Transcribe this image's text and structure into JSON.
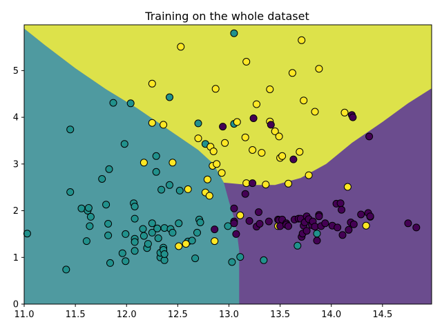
{
  "chart_data": {
    "type": "scatter",
    "title": "Training on the whole dataset",
    "xlabel": "",
    "ylabel": "",
    "xlim": [
      11.0,
      14.98
    ],
    "ylim": [
      0.0,
      5.98
    ],
    "grid": false,
    "legend": "none",
    "x_ticks": [
      "11.0",
      "11.5",
      "12.0",
      "12.5",
      "13.0",
      "13.5",
      "14.0",
      "14.5"
    ],
    "x_tick_values": [
      11.0,
      11.5,
      12.0,
      12.5,
      13.0,
      13.5,
      14.0,
      14.5
    ],
    "y_ticks": [
      "0",
      "1",
      "2",
      "3",
      "4",
      "5"
    ],
    "y_tick_values": [
      0,
      1,
      2,
      3,
      4,
      5
    ],
    "colors": {
      "class_0": "#440154",
      "class_1": "#21918c",
      "class_2": "#fde725",
      "region_0": "#6b4c8e",
      "region_1": "#4f9aa0",
      "region_2": "#dde24a"
    },
    "decision_regions": {
      "region_1_boundary": [
        [
          11.0,
          5.9
        ],
        [
          11.2,
          5.55
        ],
        [
          11.5,
          5.05
        ],
        [
          11.8,
          4.6
        ],
        [
          12.1,
          4.2
        ],
        [
          12.4,
          3.75
        ],
        [
          12.7,
          3.3
        ],
        [
          12.85,
          3.0
        ],
        [
          12.95,
          2.6
        ],
        [
          13.0,
          2.2
        ],
        [
          13.05,
          1.85
        ],
        [
          13.08,
          1.5
        ],
        [
          13.1,
          1.15
        ],
        [
          13.1,
          0.0
        ]
      ],
      "region_2_boundary": [
        [
          12.95,
          2.6
        ],
        [
          13.2,
          2.55
        ],
        [
          13.45,
          2.55
        ],
        [
          13.7,
          2.7
        ],
        [
          13.95,
          3.0
        ],
        [
          14.2,
          3.45
        ],
        [
          14.5,
          3.9
        ],
        [
          14.75,
          4.3
        ],
        [
          14.98,
          4.62
        ]
      ]
    },
    "series": [
      {
        "class": 1,
        "points": [
          [
            11.03,
            1.51
          ],
          [
            11.41,
            0.74
          ],
          [
            11.45,
            3.74
          ],
          [
            11.45,
            2.4
          ],
          [
            11.56,
            2.05
          ],
          [
            11.61,
            1.35
          ],
          [
            11.62,
            2.0
          ],
          [
            11.63,
            2.06
          ],
          [
            11.64,
            1.67
          ],
          [
            11.65,
            1.87
          ],
          [
            11.76,
            2.68
          ],
          [
            11.8,
            2.13
          ],
          [
            11.82,
            1.47
          ],
          [
            11.82,
            1.72
          ],
          [
            11.83,
            2.89
          ],
          [
            11.84,
            0.88
          ],
          [
            11.87,
            4.31
          ],
          [
            11.96,
            1.09
          ],
          [
            11.98,
            3.43
          ],
          [
            11.99,
            0.92
          ],
          [
            11.99,
            1.5
          ],
          [
            12.04,
            4.3
          ],
          [
            12.07,
            2.16
          ],
          [
            12.08,
            2.09
          ],
          [
            12.08,
            1.83
          ],
          [
            12.08,
            1.4
          ],
          [
            12.08,
            1.33
          ],
          [
            12.08,
            1.14
          ],
          [
            12.16,
            1.61
          ],
          [
            12.17,
            1.46
          ],
          [
            12.2,
            1.2
          ],
          [
            12.21,
            1.29
          ],
          [
            12.25,
            1.73
          ],
          [
            12.25,
            1.53
          ],
          [
            12.29,
            2.83
          ],
          [
            12.29,
            3.17
          ],
          [
            12.3,
            1.62
          ],
          [
            12.31,
            1.41
          ],
          [
            12.33,
            1.0
          ],
          [
            12.33,
            1.1
          ],
          [
            12.34,
            2.45
          ],
          [
            12.36,
            1.21
          ],
          [
            12.36,
            1.16
          ],
          [
            12.37,
            0.94
          ],
          [
            12.37,
            1.07
          ],
          [
            12.37,
            1.63
          ],
          [
            12.42,
            4.43
          ],
          [
            12.42,
            2.55
          ],
          [
            12.43,
            1.61
          ],
          [
            12.45,
            1.53
          ],
          [
            12.51,
            1.73
          ],
          [
            12.52,
            2.43
          ],
          [
            12.6,
            1.34
          ],
          [
            12.64,
            1.36
          ],
          [
            12.67,
            0.98
          ],
          [
            12.69,
            1.53
          ],
          [
            12.7,
            3.87
          ],
          [
            12.71,
            1.81
          ],
          [
            12.72,
            1.75
          ],
          [
            12.77,
            3.43
          ],
          [
            12.99,
            1.67
          ],
          [
            13.03,
            0.9
          ],
          [
            13.05,
            3.86
          ],
          [
            13.05,
            5.8
          ],
          [
            13.11,
            1.01
          ],
          [
            13.34,
            0.94
          ],
          [
            13.67,
            1.25
          ],
          [
            13.86,
            1.51
          ]
        ]
      },
      {
        "class": 2,
        "points": [
          [
            12.17,
            3.03
          ],
          [
            12.25,
            4.72
          ],
          [
            12.25,
            3.88
          ],
          [
            12.36,
            3.84
          ],
          [
            12.45,
            3.03
          ],
          [
            12.51,
            1.24
          ],
          [
            12.53,
            5.51
          ],
          [
            12.58,
            1.29
          ],
          [
            12.6,
            2.46
          ],
          [
            12.7,
            3.55
          ],
          [
            12.77,
            2.39
          ],
          [
            12.79,
            2.67
          ],
          [
            12.81,
            2.32
          ],
          [
            12.82,
            3.37
          ],
          [
            12.84,
            2.96
          ],
          [
            12.85,
            3.27
          ],
          [
            12.86,
            1.35
          ],
          [
            12.87,
            4.61
          ],
          [
            12.88,
            3.0
          ],
          [
            12.93,
            2.81
          ],
          [
            12.96,
            3.45
          ],
          [
            13.08,
            3.9
          ],
          [
            13.11,
            1.9
          ],
          [
            13.16,
            3.57
          ],
          [
            13.17,
            5.19
          ],
          [
            13.17,
            2.59
          ],
          [
            13.23,
            3.3
          ],
          [
            13.27,
            4.28
          ],
          [
            13.32,
            3.24
          ],
          [
            13.36,
            2.56
          ],
          [
            13.4,
            3.91
          ],
          [
            13.4,
            4.6
          ],
          [
            13.45,
            3.7
          ],
          [
            13.48,
            1.67
          ],
          [
            13.49,
            3.59
          ],
          [
            13.5,
            3.13
          ],
          [
            13.52,
            3.17
          ],
          [
            13.58,
            2.58
          ],
          [
            13.62,
            4.95
          ],
          [
            13.69,
            3.26
          ],
          [
            13.71,
            5.65
          ],
          [
            13.73,
            4.36
          ],
          [
            13.78,
            2.76
          ],
          [
            13.84,
            4.12
          ],
          [
            13.88,
            5.04
          ],
          [
            14.13,
            4.1
          ],
          [
            14.16,
            2.51
          ],
          [
            14.34,
            1.68
          ]
        ]
      },
      {
        "class": 0,
        "points": [
          [
            12.86,
            1.6
          ],
          [
            12.94,
            3.8
          ],
          [
            13.05,
            2.05
          ],
          [
            13.05,
            1.77
          ],
          [
            13.05,
            1.73
          ],
          [
            13.07,
            1.5
          ],
          [
            13.16,
            2.36
          ],
          [
            13.2,
            1.78
          ],
          [
            13.23,
            2.59
          ],
          [
            13.24,
            3.98
          ],
          [
            13.27,
            1.66
          ],
          [
            13.29,
            1.97
          ],
          [
            13.3,
            1.72
          ],
          [
            13.39,
            1.77
          ],
          [
            13.41,
            3.84
          ],
          [
            13.48,
            1.81
          ],
          [
            13.49,
            1.8
          ],
          [
            13.5,
            1.67
          ],
          [
            13.52,
            1.81
          ],
          [
            13.56,
            1.73
          ],
          [
            13.56,
            1.7
          ],
          [
            13.58,
            1.67
          ],
          [
            13.63,
            3.1
          ],
          [
            13.64,
            1.81
          ],
          [
            13.68,
            1.83
          ],
          [
            13.7,
            1.83
          ],
          [
            13.71,
            1.44
          ],
          [
            13.72,
            1.51
          ],
          [
            13.73,
            1.68
          ],
          [
            13.74,
            1.75
          ],
          [
            13.76,
            1.88
          ],
          [
            13.76,
            1.57
          ],
          [
            13.78,
            1.82
          ],
          [
            13.81,
            1.69
          ],
          [
            13.82,
            1.77
          ],
          [
            13.84,
            1.66
          ],
          [
            13.86,
            1.36
          ],
          [
            13.88,
            1.91
          ],
          [
            13.88,
            1.88
          ],
          [
            13.9,
            1.67
          ],
          [
            13.94,
            1.73
          ],
          [
            14.01,
            1.68
          ],
          [
            14.05,
            2.15
          ],
          [
            14.06,
            1.64
          ],
          [
            14.09,
            2.16
          ],
          [
            14.1,
            2.02
          ],
          [
            14.11,
            1.48
          ],
          [
            14.17,
            1.59
          ],
          [
            14.19,
            1.75
          ],
          [
            14.2,
            4.05
          ],
          [
            14.21,
            4.0
          ],
          [
            14.22,
            1.71
          ],
          [
            14.29,
            1.92
          ],
          [
            14.36,
            1.95
          ],
          [
            14.37,
            3.59
          ],
          [
            14.38,
            1.87
          ],
          [
            14.38,
            1.88
          ],
          [
            14.75,
            1.73
          ],
          [
            14.83,
            1.64
          ]
        ]
      }
    ]
  }
}
